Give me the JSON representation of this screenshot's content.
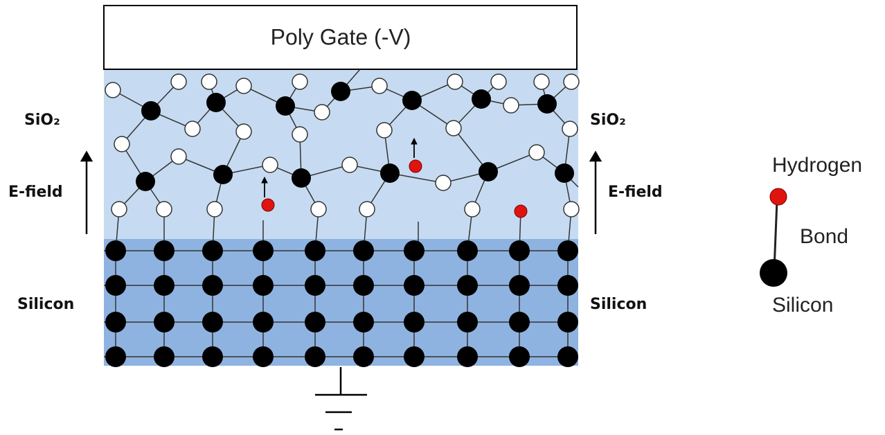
{
  "gate": {
    "label": "Poly Gate (-V)"
  },
  "left_labels": {
    "oxide": "SiO₂",
    "field": "E-field",
    "substrate": "Silicon"
  },
  "right_labels": {
    "oxide": "SiO₂",
    "field": "E-field",
    "substrate": "Silicon"
  },
  "legend": {
    "hydrogen": "Hydrogen",
    "bond": "Bond",
    "silicon": "Silicon"
  }
}
